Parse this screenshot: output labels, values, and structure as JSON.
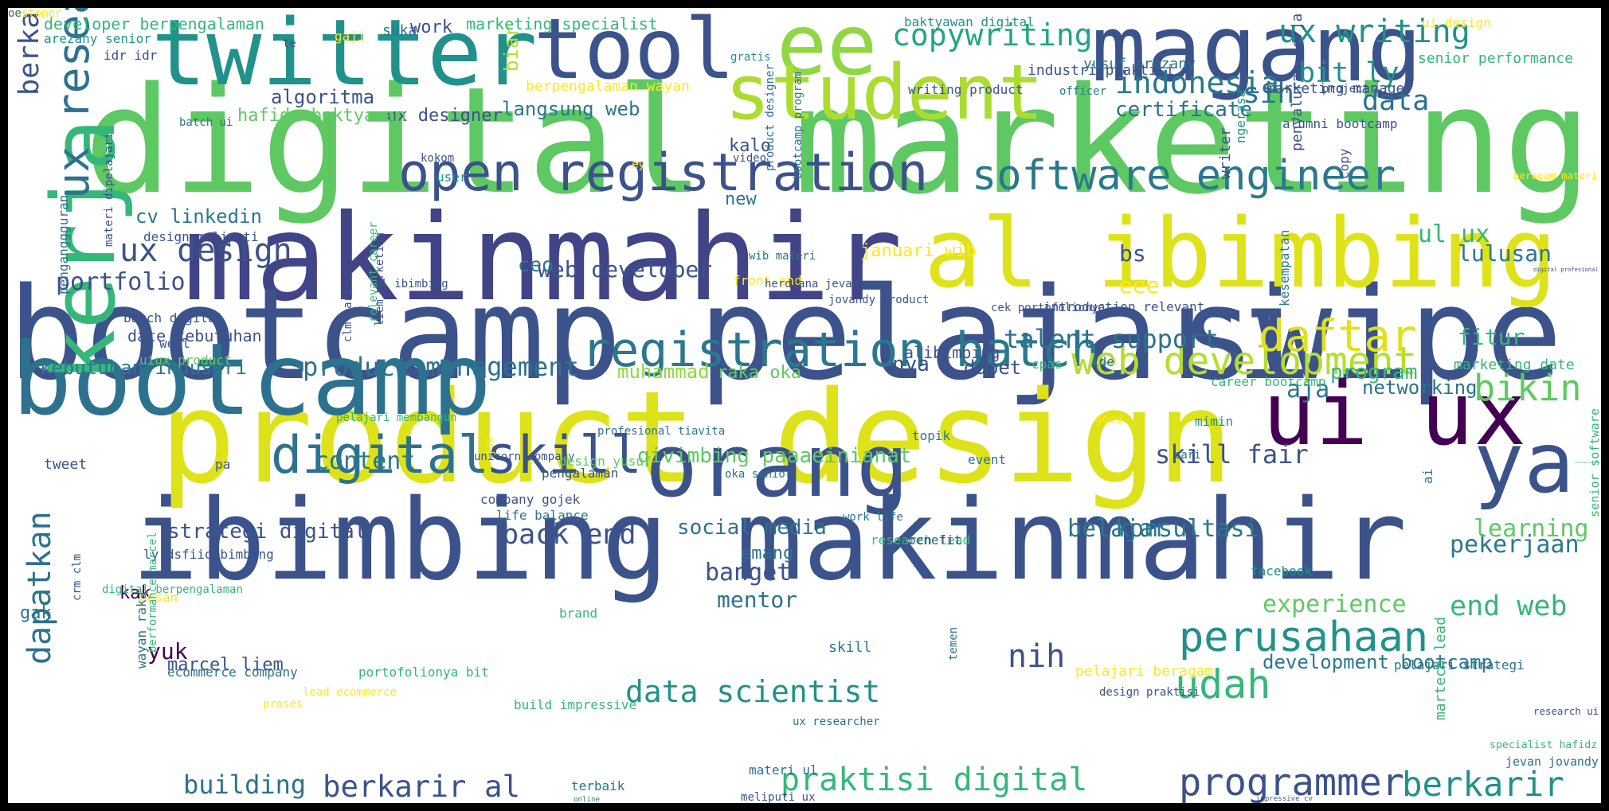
{
  "words": [
    {
      "text": "digital marketing",
      "color": "#5ec962"
    },
    {
      "text": "makinmahir",
      "color": "#414487"
    },
    {
      "text": "bootcamp pelajari",
      "color": "#3b528b"
    },
    {
      "text": "ibimbing makinmahir",
      "color": "#3b528b"
    },
    {
      "text": "product design",
      "color": "#dde318"
    },
    {
      "text": "swipe",
      "color": "#3b528b"
    },
    {
      "text": "al ibimbing",
      "color": "#dde318"
    },
    {
      "text": "bootcamp",
      "color": "#2c728e"
    },
    {
      "text": "kerja",
      "color": "#35b779"
    },
    {
      "text": "twitter",
      "color": "#21918c"
    },
    {
      "text": "tool",
      "color": "#3b528b"
    },
    {
      "text": "magang",
      "color": "#3b528b"
    },
    {
      "text": "ee",
      "color": "#90d743"
    },
    {
      "text": "student",
      "color": "#addc30"
    },
    {
      "text": "orang",
      "color": "#3b528b"
    },
    {
      "text": "ui ux",
      "color": "#440154"
    },
    {
      "text": "ya",
      "color": "#3b528b"
    },
    {
      "text": "open registration",
      "color": "#3b528b"
    },
    {
      "text": "registration batch",
      "color": "#2a788e"
    },
    {
      "text": "software engineer",
      "color": "#2a788e"
    },
    {
      "text": "ux research",
      "color": "#2c728e"
    },
    {
      "text": "berkarir ibimbing",
      "color": "#3b528b"
    },
    {
      "text": "web development",
      "color": "#b5de2b"
    },
    {
      "text": "digital",
      "color": "#2c728e"
    },
    {
      "text": "skill",
      "color": "#3b528b"
    },
    {
      "text": "copywriting",
      "color": "#21a585"
    },
    {
      "text": "ux writing",
      "color": "#21918c"
    },
    {
      "text": "indonesia",
      "color": "#2a788e"
    },
    {
      "text": "bit ly",
      "color": "#21918c"
    },
    {
      "text": "sih",
      "color": "#2c728e"
    },
    {
      "text": "data",
      "color": "#2c728e"
    },
    {
      "text": "certificate",
      "color": "#2c728e"
    },
    {
      "text": "data science",
      "color": "#3b528b"
    },
    {
      "text": "biar",
      "color": "#b5de2b"
    },
    {
      "text": "langsung web",
      "color": "#2a788e"
    },
    {
      "text": "algoritma",
      "color": "#3b528b"
    },
    {
      "text": "ux designer",
      "color": "#3b528b"
    },
    {
      "text": "hafidz baktyawan",
      "color": "#5ec962"
    },
    {
      "text": "ux design",
      "color": "#3b528b"
    },
    {
      "text": "cv linkedin",
      "color": "#2a788e"
    },
    {
      "text": "portfolio",
      "color": "#3b528b"
    },
    {
      "text": "daftar",
      "color": "#dde318"
    },
    {
      "text": "bikin",
      "color": "#5ec962"
    },
    {
      "text": "fitur",
      "color": "#35b779"
    },
    {
      "text": "lulusan",
      "color": "#2a788e"
    },
    {
      "text": "ul ux",
      "color": "#35b779"
    },
    {
      "text": "talent support",
      "color": "#2c728e"
    },
    {
      "text": "product management",
      "color": "#2c728e"
    },
    {
      "text": "kebutuhan industri",
      "color": "#2a788e"
    },
    {
      "text": "web developer",
      "color": "#3b528b"
    },
    {
      "text": "bs",
      "color": "#3b528b"
    },
    {
      "text": "eee",
      "color": "#fde725"
    },
    {
      "text": "januari wib",
      "color": "#fde725"
    },
    {
      "text": "nya",
      "color": "#3b528b"
    },
    {
      "text": "dapet",
      "color": "#3b528b"
    },
    {
      "text": "aja",
      "color": "#2a788e"
    },
    {
      "text": "networking",
      "color": "#2c728e"
    },
    {
      "text": "program",
      "color": "#35b779"
    },
    {
      "text": "muhammad",
      "color": "#90d743"
    },
    {
      "text": "raka oka",
      "color": "#5ec962"
    },
    {
      "text": "content",
      "color": "#2a788e"
    },
    {
      "text": "qivimbing paaaeinianat",
      "color": "#5ec962"
    },
    {
      "text": "skill fair",
      "color": "#3b528b"
    },
    {
      "text": "strategi digital",
      "color": "#3b528b"
    },
    {
      "text": "back end",
      "color": "#3b528b"
    },
    {
      "text": "social media",
      "color": "#2c728e"
    },
    {
      "text": "belajar",
      "color": "#2a788e"
    },
    {
      "text": "konsultasi",
      "color": "#2a788e"
    },
    {
      "text": "pekerjaan",
      "color": "#2a788e"
    },
    {
      "text": "learning",
      "color": "#5ec962"
    },
    {
      "text": "emang",
      "color": "#2c728e"
    },
    {
      "text": "banget",
      "color": "#3b528b"
    },
    {
      "text": "mentor",
      "color": "#2c728e"
    },
    {
      "text": "experience",
      "color": "#5ec962"
    },
    {
      "text": "end web",
      "color": "#35b779"
    },
    {
      "text": "perusahaan",
      "color": "#21918c"
    },
    {
      "text": "nih",
      "color": "#3b528b"
    },
    {
      "text": "udah",
      "color": "#35b779"
    },
    {
      "text": "data scientist",
      "color": "#21918c"
    },
    {
      "text": "development bootcamp",
      "color": "#2a788e"
    },
    {
      "text": "programmer",
      "color": "#3b528b"
    },
    {
      "text": "praktisi digital",
      "color": "#35b779"
    },
    {
      "text": "berkarir",
      "color": "#21918c"
    },
    {
      "text": "berkarir al",
      "color": "#3b528b"
    },
    {
      "text": "building",
      "color": "#2c728e"
    },
    {
      "text": "dapatkan",
      "color": "#2c728e"
    },
    {
      "text": "senior software",
      "color": "#35b779"
    },
    {
      "text": "yuk",
      "color": "#440154"
    },
    {
      "text": "marcel liem",
      "color": "#3b528b"
    },
    {
      "text": "kak",
      "color": "#440154"
    },
    {
      "text": "gak",
      "color": "#2c728e"
    },
    {
      "text": "developer berpengalaman",
      "color": "#35b779"
    },
    {
      "text": "arezany senior",
      "color": "#21918c"
    },
    {
      "text": "idr idr",
      "color": "#3b528b"
    },
    {
      "text": "te",
      "color": "#3b528b"
    },
    {
      "text": "gaji",
      "color": "#fde725"
    },
    {
      "text": "suka",
      "color": "#2c728e"
    },
    {
      "text": "work",
      "color": "#3b528b"
    },
    {
      "text": "marketing specialist",
      "color": "#35b779"
    },
    {
      "text": "baktyawan digital",
      "color": "#21918c"
    },
    {
      "text": "ui design",
      "color": "#fde725"
    },
    {
      "text": "senior performance",
      "color": "#35b779"
    },
    {
      "text": "industri praktisi",
      "color": "#3b528b"
    },
    {
      "text": "yusuf arezany",
      "color": "#2c728e"
    },
    {
      "text": "writing product",
      "color": "#3b528b"
    },
    {
      "text": "marketing manager",
      "color": "#3b528b"
    },
    {
      "text": "project",
      "color": "#3b528b"
    },
    {
      "text": "officer",
      "color": "#2a788e"
    },
    {
      "text": "alumni bootcamp",
      "color": "#3b528b"
    },
    {
      "text": "gratis",
      "color": "#21918c"
    },
    {
      "text": "berpengalaman wayan",
      "color": "#fde725"
    },
    {
      "text": "batch ui",
      "color": "#2c728e"
    },
    {
      "text": "kalo",
      "color": "#3b528b"
    },
    {
      "text": "video",
      "color": "#3b528b"
    },
    {
      "text": "kokom",
      "color": "#3b528b"
    },
    {
      "text": "user",
      "color": "#21918c"
    },
    {
      "text": "ey",
      "color": "#fde725"
    },
    {
      "text": "new",
      "color": "#2c728e"
    },
    {
      "text": "product designer",
      "color": "#2c728e"
    },
    {
      "text": "bootcamp program",
      "color": "#2a788e"
    },
    {
      "text": "writer",
      "color": "#3b528b"
    },
    {
      "text": "ngerasa",
      "color": "#21918c"
    },
    {
      "text": "penyaluran kerja",
      "color": "#3b528b"
    },
    {
      "text": "copy",
      "color": "#3b528b"
    },
    {
      "text": "beragam materi",
      "color": "#fde725"
    },
    {
      "text": "digital profesional",
      "color": "#3b528b"
    },
    {
      "text": "wib materi",
      "color": "#2c728e"
    },
    {
      "text": "front end",
      "color": "#fde725"
    },
    {
      "text": "herdiana jevan",
      "color": "#3b528b"
    },
    {
      "text": "jovandy product",
      "color": "#3b528b"
    },
    {
      "text": "al ibimbing",
      "color": "#3b528b"
    },
    {
      "text": "introduction relevant",
      "color": "#3b528b"
    },
    {
      "text": "cek portofolionya",
      "color": "#3b528b"
    },
    {
      "text": "kesempatan",
      "color": "#2a788e"
    },
    {
      "text": "ide",
      "color": "#2c728e"
    },
    {
      "text": "cpas",
      "color": "#35b779"
    },
    {
      "text": "career bootcamp",
      "color": "#35b779"
    },
    {
      "text": "marketing date",
      "color": "#35b779"
    },
    {
      "text": "design meliputi",
      "color": "#3b528b"
    },
    {
      "text": "batch digital",
      "color": "#3b528b"
    },
    {
      "text": "date kebutuhan",
      "color": "#3b528b"
    },
    {
      "text": "well",
      "color": "#3b528b"
    },
    {
      "text": "uiux product",
      "color": "#5ec962"
    },
    {
      "text": "alibimbing",
      "color": "#3b528b"
    },
    {
      "text": "clm martech",
      "color": "#3b528b"
    },
    {
      "text": "liem marketing",
      "color": "#3b528b"
    },
    {
      "text": "relevant career",
      "color": "#35b779"
    },
    {
      "text": "penganggguran",
      "color": "#2c728e"
    },
    {
      "text": "materi dipelajari",
      "color": "#3b528b"
    },
    {
      "text": "pelajari membangun",
      "color": "#35b779"
    },
    {
      "text": "profesional tiavita",
      "color": "#2c728e"
    },
    {
      "text": "topik",
      "color": "#2c728e"
    },
    {
      "text": "good",
      "color": "#fde725"
    },
    {
      "text": "mimin",
      "color": "#21918c"
    },
    {
      "text": "cari",
      "color": "#2c728e"
    },
    {
      "text": "event",
      "color": "#2c728e"
    },
    {
      "text": "tweet",
      "color": "#3b528b"
    },
    {
      "text": "pa",
      "color": "#3b528b"
    },
    {
      "text": "unicorn company",
      "color": "#3b528b"
    },
    {
      "text": "design yusuf",
      "color": "#5ec962"
    },
    {
      "text": "pengalaman",
      "color": "#3b528b"
    },
    {
      "text": "oka senior",
      "color": "#2c728e"
    },
    {
      "text": "company gojek",
      "color": "#3b528b"
    },
    {
      "text": "life balance",
      "color": "#2c728e"
    },
    {
      "text": "work life",
      "color": "#2c728e"
    },
    {
      "text": "research lead",
      "color": "#35b779"
    },
    {
      "text": "benefit",
      "color": "#3b528b"
    },
    {
      "text": "facebook",
      "color": "#21918c"
    },
    {
      "text": "tiavita herdiana",
      "color": "#35b779"
    },
    {
      "text": "ai",
      "color": "#2c728e"
    },
    {
      "text": "job",
      "color": "#fde725"
    },
    {
      "text": "ly dsfiidibimbing",
      "color": "#3b528b"
    },
    {
      "text": "digital berpengalaman",
      "color": "#35b779"
    },
    {
      "text": "pesan",
      "color": "#fde725"
    },
    {
      "text": "brand",
      "color": "#35b779"
    },
    {
      "text": "skill",
      "color": "#2a788e"
    },
    {
      "text": "pelajari beragam",
      "color": "#fde725"
    },
    {
      "text": "pelajari strategi",
      "color": "#2c728e"
    },
    {
      "text": "specialist hafidz",
      "color": "#35b779"
    },
    {
      "text": "research ui",
      "color": "#3b528b"
    },
    {
      "text": "martech lead",
      "color": "#35b779"
    },
    {
      "text": "jevan jovandy",
      "color": "#2c728e"
    },
    {
      "text": "crm clm",
      "color": "#3b528b"
    },
    {
      "text": "wayan raka",
      "color": "#2c728e"
    },
    {
      "text": "performance marcel",
      "color": "#35b779"
    },
    {
      "text": "ecommerce company",
      "color": "#2c728e"
    },
    {
      "text": "portofolionya bit",
      "color": "#35b779"
    },
    {
      "text": "lead ecommerce",
      "color": "#fde725"
    },
    {
      "text": "design praktisi",
      "color": "#3b528b"
    },
    {
      "text": "temen",
      "color": "#2c728e"
    },
    {
      "text": "proses",
      "color": "#fde725"
    },
    {
      "text": "build impressive",
      "color": "#35b779"
    },
    {
      "text": "ux researcher",
      "color": "#2c728e"
    },
    {
      "text": "materi ul",
      "color": "#2c728e"
    },
    {
      "text": "terbaik",
      "color": "#2c728e"
    },
    {
      "text": "online",
      "color": "#2c728e"
    },
    {
      "text": "meliputi ux",
      "color": "#3b528b"
    },
    {
      "text": "impressive cv",
      "color": "#3b528b"
    },
    {
      "text": "ceo",
      "color": "#2c728e"
    },
    {
      "text": "customer",
      "color": "#fde725"
    },
    {
      "text": "oe",
      "color": "#2c728e"
    }
  ]
}
